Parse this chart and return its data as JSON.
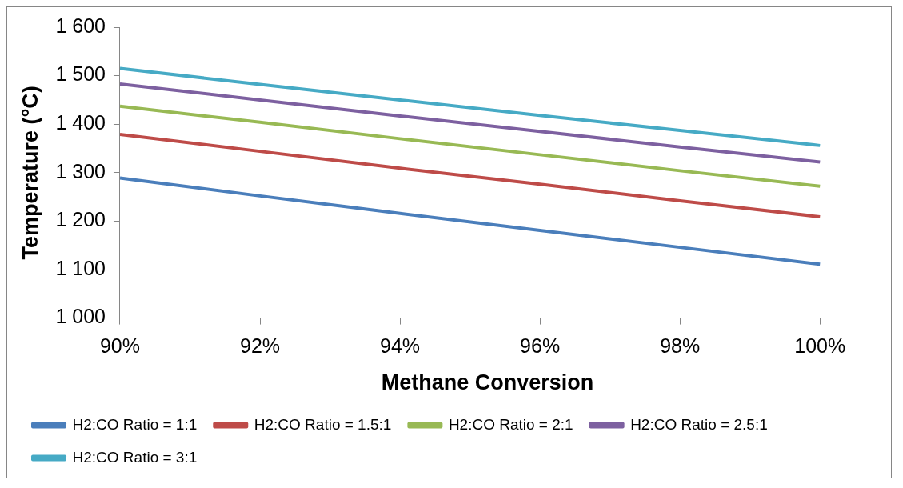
{
  "chart_data": {
    "type": "line",
    "xlabel": "Methane Conversion",
    "ylabel": "Temperature (°C)",
    "x": [
      90,
      92,
      94,
      96,
      98,
      100
    ],
    "xlim": [
      90,
      100.5
    ],
    "xticks": [
      {
        "value": 90,
        "label": "90%"
      },
      {
        "value": 92,
        "label": "92%"
      },
      {
        "value": 94,
        "label": "94%"
      },
      {
        "value": 96,
        "label": "96%"
      },
      {
        "value": 98,
        "label": "98%"
      },
      {
        "value": 100,
        "label": "100%"
      }
    ],
    "ylim": [
      1000,
      1600
    ],
    "yticks": [
      {
        "value": 1000,
        "label": "1 000"
      },
      {
        "value": 1100,
        "label": "1 100"
      },
      {
        "value": 1200,
        "label": "1 200"
      },
      {
        "value": 1300,
        "label": "1 300"
      },
      {
        "value": 1400,
        "label": "1 400"
      },
      {
        "value": 1500,
        "label": "1 500"
      },
      {
        "value": 1600,
        "label": "1 600"
      }
    ],
    "grid": false,
    "legend": "bottom",
    "marker": "none",
    "line_style": "solid",
    "series": [
      {
        "name": "H2:CO Ratio = 1:1",
        "color": "#4a7ebb",
        "values": [
          1289,
          1252,
          1216,
          1181,
          1146,
          1111
        ]
      },
      {
        "name": "H2:CO Ratio = 1.5:1",
        "color": "#be4b48",
        "values": [
          1379,
          1344,
          1309,
          1276,
          1242,
          1209
        ]
      },
      {
        "name": "H2:CO Ratio = 2:1",
        "color": "#98b954",
        "values": [
          1437,
          1404,
          1370,
          1337,
          1304,
          1272
        ]
      },
      {
        "name": "H2:CO Ratio = 2.5:1",
        "color": "#7d60a0",
        "values": [
          1483,
          1450,
          1417,
          1385,
          1353,
          1322
        ]
      },
      {
        "name": "H2:CO Ratio = 3:1",
        "color": "#46aac5",
        "values": [
          1515,
          1482,
          1450,
          1418,
          1387,
          1356
        ]
      }
    ]
  }
}
